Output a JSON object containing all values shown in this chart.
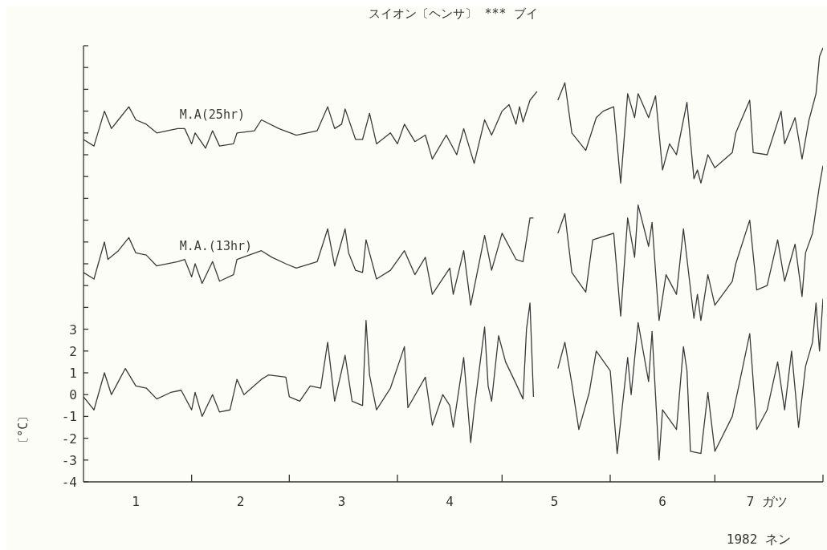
{
  "chart_data": {
    "type": "line",
    "title": "スイオン〔ヘンサ〕 *** ブイ",
    "xlabel": "1982 ネン",
    "ylabel": "〔°C〕",
    "xlim": [
      "1982-01-01",
      "1982-08-01"
    ],
    "xticks": [
      {
        "value": "1982-01-16",
        "label": "1"
      },
      {
        "value": "1982-02-01",
        "label": null
      },
      {
        "value": "1982-02-15",
        "label": "2"
      },
      {
        "value": "1982-03-01",
        "label": null
      },
      {
        "value": "1982-03-16",
        "label": "3"
      },
      {
        "value": "1982-04-01",
        "label": null
      },
      {
        "value": "1982-04-16",
        "label": "4"
      },
      {
        "value": "1982-05-01",
        "label": null
      },
      {
        "value": "1982-05-16",
        "label": "5"
      },
      {
        "value": "1982-06-01",
        "label": null
      },
      {
        "value": "1982-06-16",
        "label": "6"
      },
      {
        "value": "1982-07-01",
        "label": null
      },
      {
        "value": "1982-07-16",
        "label": "7 ガツ"
      },
      {
        "value": "1982-08-01",
        "label": null
      }
    ],
    "ylim": [
      -4,
      16
    ],
    "yticks": [
      -4,
      -3,
      -2,
      -1,
      0,
      1,
      2,
      3,
      {
        "value": 4,
        "label": null
      },
      {
        "value": 5,
        "label": null
      },
      {
        "value": 6,
        "label": null
      },
      {
        "value": 7,
        "label": null
      },
      {
        "value": 8,
        "label": null
      },
      {
        "value": 9,
        "label": null
      },
      {
        "value": 10,
        "label": null
      },
      {
        "value": 11,
        "label": null
      },
      {
        "value": 12,
        "label": null
      },
      {
        "value": 13,
        "label": null
      },
      {
        "value": 14,
        "label": null
      },
      {
        "value": 15,
        "label": null
      },
      {
        "value": 16,
        "label": null
      }
    ],
    "series": [
      {
        "name": "M.A(25hr)",
        "color": "#3a3a3a",
        "x": [
          "1982-01-01",
          "1982-01-04",
          "1982-01-07",
          "1982-01-09",
          "1982-01-11",
          "1982-01-14",
          "1982-01-16",
          "1982-01-19",
          "1982-01-22",
          "1982-01-28",
          "1982-01-30",
          "1982-02-01",
          "1982-02-02",
          "1982-02-05",
          "1982-02-07",
          "1982-02-09",
          "1982-02-13",
          "1982-02-14",
          "1982-02-19",
          "1982-02-21",
          "1982-02-26",
          "1982-03-03",
          "1982-03-09",
          "1982-03-12",
          "1982-03-14",
          "1982-03-16",
          "1982-03-17",
          "1982-03-20",
          "1982-03-22",
          "1982-03-24",
          "1982-03-26",
          "1982-03-30",
          "1982-04-01",
          "1982-04-03",
          "1982-04-06",
          "1982-04-09",
          "1982-04-11",
          "1982-04-15",
          "1982-04-18",
          "1982-04-20",
          "1982-04-23",
          "1982-04-26",
          "1982-04-28",
          "1982-05-01",
          "1982-05-03",
          "1982-05-05",
          "1982-05-06",
          "1982-05-07",
          "1982-05-09",
          "1982-05-11",
          "1982-05-14",
          "1982-05-17",
          "1982-05-19",
          "1982-05-21",
          "1982-05-25",
          "1982-05-28",
          "1982-05-30",
          "1982-06-02",
          "1982-06-04",
          "1982-06-06",
          "1982-06-08",
          "1982-06-09",
          "1982-06-12",
          "1982-06-14",
          "1982-06-16",
          "1982-06-18",
          "1982-06-20",
          "1982-06-23",
          "1982-06-25",
          "1982-06-26",
          "1982-06-27",
          "1982-06-29",
          "1982-07-01",
          "1982-07-06",
          "1982-07-07",
          "1982-07-11",
          "1982-07-12",
          "1982-07-16",
          "1982-07-20",
          "1982-07-21",
          "1982-07-24",
          "1982-07-26",
          "1982-07-28",
          "1982-07-30",
          "1982-07-31",
          "1982-08-01"
        ],
        "values": [
          11.7,
          11.4,
          13.0,
          12.2,
          12.6,
          13.2,
          12.6,
          12.4,
          12.0,
          12.2,
          12.2,
          11.5,
          12.0,
          11.3,
          12.1,
          11.4,
          11.5,
          12.0,
          12.1,
          12.6,
          12.2,
          11.9,
          12.1,
          13.2,
          12.2,
          12.4,
          13.1,
          11.7,
          11.7,
          12.9,
          11.5,
          12.0,
          11.5,
          12.4,
          11.6,
          11.9,
          10.8,
          11.9,
          11.0,
          12.2,
          10.6,
          12.6,
          11.9,
          13.0,
          13.3,
          12.4,
          13.2,
          12.5,
          13.5,
          13.9,
          null,
          13.5,
          14.3,
          12.0,
          11.2,
          12.7,
          13.0,
          13.2,
          9.7,
          13.8,
          12.7,
          13.8,
          12.7,
          13.7,
          10.3,
          11.5,
          11.0,
          13.4,
          9.9,
          10.3,
          9.7,
          11.0,
          10.4,
          11.1,
          12.0,
          13.5,
          11.1,
          11.0,
          13.0,
          11.5,
          12.7,
          10.8,
          12.6,
          13.8,
          15.5,
          15.9
        ]
      },
      {
        "name": "M.A.(13hr)",
        "color": "#3a3a3a",
        "x": [
          "1982-01-01",
          "1982-01-04",
          "1982-01-07",
          "1982-01-08",
          "1982-01-11",
          "1982-01-14",
          "1982-01-16",
          "1982-01-19",
          "1982-01-22",
          "1982-01-28",
          "1982-01-30",
          "1982-02-01",
          "1982-02-02",
          "1982-02-04",
          "1982-02-07",
          "1982-02-09",
          "1982-02-13",
          "1982-02-14",
          "1982-02-21",
          "1982-02-24",
          "1982-02-28",
          "1982-03-03",
          "1982-03-09",
          "1982-03-12",
          "1982-03-14",
          "1982-03-17",
          "1982-03-18",
          "1982-03-20",
          "1982-03-22",
          "1982-03-23",
          "1982-03-26",
          "1982-03-30",
          "1982-04-03",
          "1982-04-06",
          "1982-04-09",
          "1982-04-11",
          "1982-04-16",
          "1982-04-17",
          "1982-04-20",
          "1982-04-22",
          "1982-04-26",
          "1982-04-28",
          "1982-05-01",
          "1982-05-05",
          "1982-05-07",
          "1982-05-09",
          "1982-05-10",
          "1982-05-14",
          "1982-05-17",
          "1982-05-19",
          "1982-05-21",
          "1982-05-25",
          "1982-05-27",
          "1982-06-02",
          "1982-06-04",
          "1982-06-06",
          "1982-06-08",
          "1982-06-09",
          "1982-06-12",
          "1982-06-13",
          "1982-06-15",
          "1982-06-17",
          "1982-06-20",
          "1982-06-22",
          "1982-06-25",
          "1982-06-26",
          "1982-06-27",
          "1982-06-29",
          "1982-07-01",
          "1982-07-06",
          "1982-07-07",
          "1982-07-11",
          "1982-07-13",
          "1982-07-16",
          "1982-07-19",
          "1982-07-21",
          "1982-07-24",
          "1982-07-26",
          "1982-07-27",
          "1982-07-29",
          "1982-07-31",
          "1982-08-01"
        ],
        "values": [
          5.6,
          5.3,
          7.0,
          6.2,
          6.6,
          7.2,
          6.5,
          6.4,
          5.9,
          6.1,
          6.2,
          5.4,
          6.0,
          5.1,
          6.1,
          5.2,
          5.5,
          6.2,
          6.6,
          6.3,
          6.0,
          5.8,
          6.1,
          7.6,
          5.9,
          7.6,
          6.5,
          5.7,
          5.6,
          7.1,
          5.3,
          5.7,
          6.6,
          5.5,
          6.3,
          4.6,
          5.8,
          4.6,
          6.6,
          4.1,
          7.3,
          5.7,
          7.4,
          6.2,
          6.1,
          8.1,
          8.1,
          null,
          7.4,
          8.3,
          5.6,
          4.7,
          7.1,
          7.4,
          3.6,
          8.1,
          6.3,
          8.7,
          6.8,
          7.9,
          3.4,
          5.5,
          4.6,
          7.6,
          3.5,
          4.6,
          3.4,
          5.5,
          4.1,
          5.2,
          6.0,
          8.0,
          4.8,
          5.0,
          7.1,
          5.2,
          6.9,
          4.5,
          6.5,
          7.4,
          9.6,
          10.5
        ]
      },
      {
        "color": "#3a3a3a",
        "x": [
          "1982-01-01",
          "1982-01-04",
          "1982-01-07",
          "1982-01-09",
          "1982-01-11",
          "1982-01-13",
          "1982-01-16",
          "1982-01-19",
          "1982-01-22",
          "1982-01-26",
          "1982-01-29",
          "1982-02-01",
          "1982-02-02",
          "1982-02-04",
          "1982-02-07",
          "1982-02-09",
          "1982-02-12",
          "1982-02-14",
          "1982-02-16",
          "1982-02-21",
          "1982-02-23",
          "1982-02-28",
          "1982-03-01",
          "1982-03-04",
          "1982-03-07",
          "1982-03-10",
          "1982-03-12",
          "1982-03-14",
          "1982-03-17",
          "1982-03-19",
          "1982-03-22",
          "1982-03-23",
          "1982-03-24",
          "1982-03-26",
          "1982-03-30",
          "1982-04-03",
          "1982-04-04",
          "1982-04-09",
          "1982-04-11",
          "1982-04-14",
          "1982-04-16",
          "1982-04-17",
          "1982-04-20",
          "1982-04-22",
          "1982-04-23",
          "1982-04-26",
          "1982-04-27",
          "1982-04-28",
          "1982-04-30",
          "1982-05-02",
          "1982-05-05",
          "1982-05-07",
          "1982-05-08",
          "1982-05-09",
          "1982-05-10",
          "1982-05-14",
          "1982-05-17",
          "1982-05-19",
          "1982-05-21",
          "1982-05-23",
          "1982-05-26",
          "1982-05-28",
          "1982-06-01",
          "1982-06-03",
          "1982-06-06",
          "1982-06-07",
          "1982-06-09",
          "1982-06-12",
          "1982-06-13",
          "1982-06-15",
          "1982-06-16",
          "1982-06-20",
          "1982-06-22",
          "1982-06-23",
          "1982-06-24",
          "1982-06-27",
          "1982-06-29",
          "1982-07-01",
          "1982-07-06",
          "1982-07-08",
          "1982-07-11",
          "1982-07-13",
          "1982-07-16",
          "1982-07-19",
          "1982-07-21",
          "1982-07-23",
          "1982-07-25",
          "1982-07-27",
          "1982-07-29",
          "1982-07-30",
          "1982-07-31",
          "1982-08-01"
        ],
        "values": [
          -0.1,
          -0.7,
          1.0,
          0.0,
          0.6,
          1.2,
          0.4,
          0.3,
          -0.2,
          0.1,
          0.2,
          -0.7,
          0.1,
          -1.0,
          0.0,
          -0.8,
          -0.7,
          0.7,
          0.0,
          0.7,
          0.9,
          0.8,
          -0.1,
          -0.3,
          0.4,
          0.3,
          2.4,
          -0.3,
          1.8,
          -0.3,
          -0.5,
          3.4,
          0.9,
          -0.7,
          0.3,
          2.2,
          -0.6,
          0.8,
          -1.4,
          0.0,
          -0.5,
          -1.5,
          1.7,
          -2.2,
          -0.7,
          3.1,
          0.4,
          -0.3,
          2.7,
          1.5,
          0.5,
          -0.2,
          3.0,
          4.2,
          -0.1,
          null,
          1.2,
          2.4,
          0.5,
          -1.6,
          0.1,
          2.0,
          1.1,
          -2.7,
          1.7,
          0.0,
          3.3,
          0.6,
          2.9,
          -3.0,
          -0.7,
          -1.6,
          2.2,
          1.1,
          -2.6,
          -2.7,
          0.1,
          -2.6,
          -1.0,
          0.5,
          2.8,
          -1.6,
          -0.7,
          1.5,
          -0.7,
          2.0,
          -1.5,
          1.3,
          2.4,
          4.2,
          2.0,
          4.4
        ]
      }
    ]
  }
}
